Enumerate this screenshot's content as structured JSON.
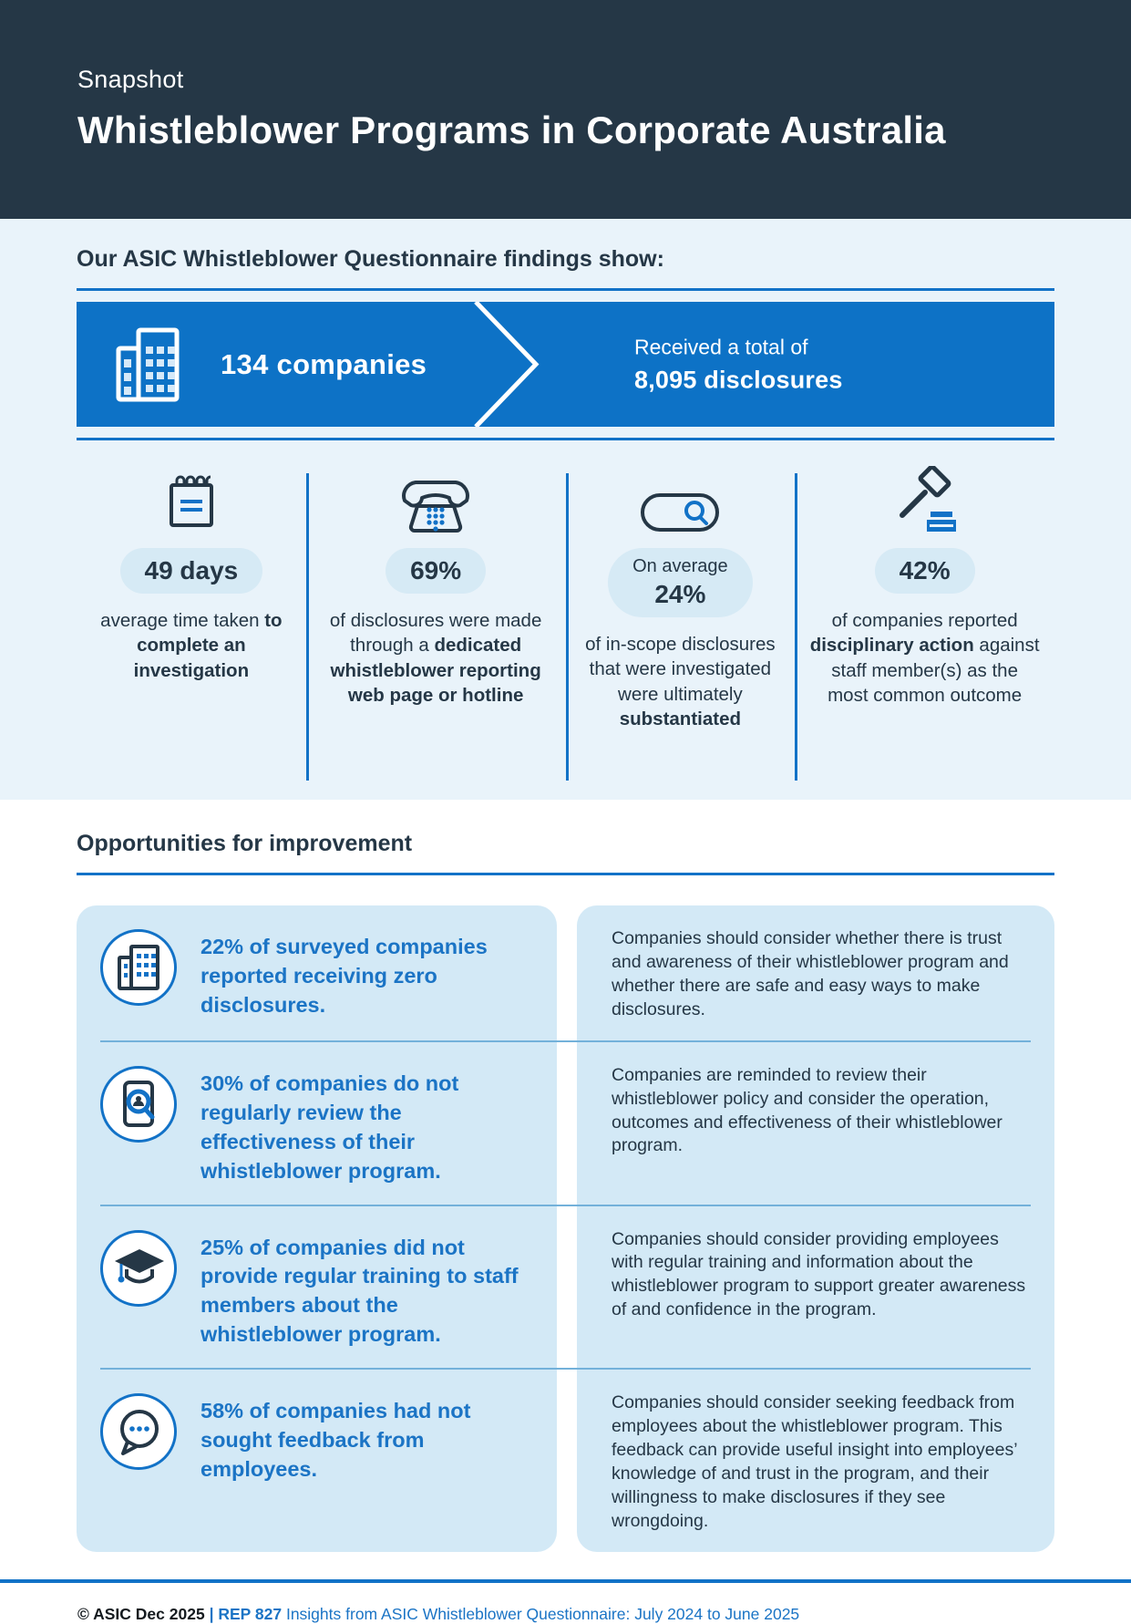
{
  "colors": {
    "navy": "#253746",
    "banner_blue": "#0d72c6",
    "accent_blue": "#1272c7",
    "light_bg": "#e9f3fa",
    "pill_bg": "#d6eaf5",
    "panel_bg": "#d3e9f6",
    "row_divider": "#73b1da",
    "blue_text": "#1b74c5"
  },
  "header": {
    "eyebrow": "Snapshot",
    "title": "Whistleblower Programs in Corporate Australia"
  },
  "findings": {
    "heading": "Our ASIC Whistleblower Questionnaire findings show:",
    "banner": {
      "icon": "buildings-icon",
      "companies": "134 companies",
      "received_prefix": "Received a total of",
      "received_value": "8,095 disclosures"
    },
    "stats": [
      {
        "icon": "calendar-icon",
        "pill": [
          "49 days"
        ],
        "text": [
          {
            "t": "average time taken ",
            "b": false
          },
          {
            "t": "to complete an investigation",
            "b": true
          }
        ]
      },
      {
        "icon": "telephone-icon",
        "pill": [
          "69%"
        ],
        "text": [
          {
            "t": "of disclosures were made through a ",
            "b": false
          },
          {
            "t": "dedicated whistleblower reporting web page or hotline",
            "b": true
          }
        ]
      },
      {
        "icon": "search-bar-icon",
        "pill": [
          "On average",
          "24%"
        ],
        "text": [
          {
            "t": "of in-scope disclosures that were investigated were ultimately ",
            "b": false
          },
          {
            "t": "substantiated",
            "b": true
          }
        ]
      },
      {
        "icon": "gavel-icon",
        "pill": [
          "42%"
        ],
        "text": [
          {
            "t": "of companies reported ",
            "b": false
          },
          {
            "t": "disciplinary action",
            "b": true
          },
          {
            "t": " against staff member(s) as the most common outcome",
            "b": false
          }
        ]
      }
    ]
  },
  "improvement": {
    "heading": "Opportunities for improvement",
    "rows": [
      {
        "icon": "buildings-circle-icon",
        "stat": "22% of surveyed companies reported receiving zero disclosures.",
        "advice": "Companies should consider whether there is trust and awareness of their whistleblower program and whether there are safe and easy ways to make disclosures."
      },
      {
        "icon": "document-magnifier-icon",
        "stat": "30% of companies do not regularly review the effectiveness of their whistleblower program.",
        "advice": "Companies are reminded to review their whistleblower policy and consider the operation, outcomes and effectiveness of their whistleblower program."
      },
      {
        "icon": "graduation-cap-icon",
        "stat": "25% of companies did not provide regular training to staff members about the whistleblower program.",
        "advice": "Companies should consider providing employees with regular training and information about the whistleblower program to support greater awareness of and confidence in the program."
      },
      {
        "icon": "speech-bubble-icon",
        "stat": "58% of companies had not sought feedback from employees.",
        "advice": "Companies should consider seeking feedback from employees about the whistleblower program. This feedback can provide useful insight into employees’ knowledge of and trust in the program, and their willingness to make disclosures if they see wrongdoing."
      }
    ]
  },
  "footer": {
    "copyright": "© ASIC Dec 2025",
    "separator": "|",
    "report_code": "REP 827",
    "report_title": "Insights from ASIC Whistleblower Questionnaire: July 2024 to June 2025"
  }
}
